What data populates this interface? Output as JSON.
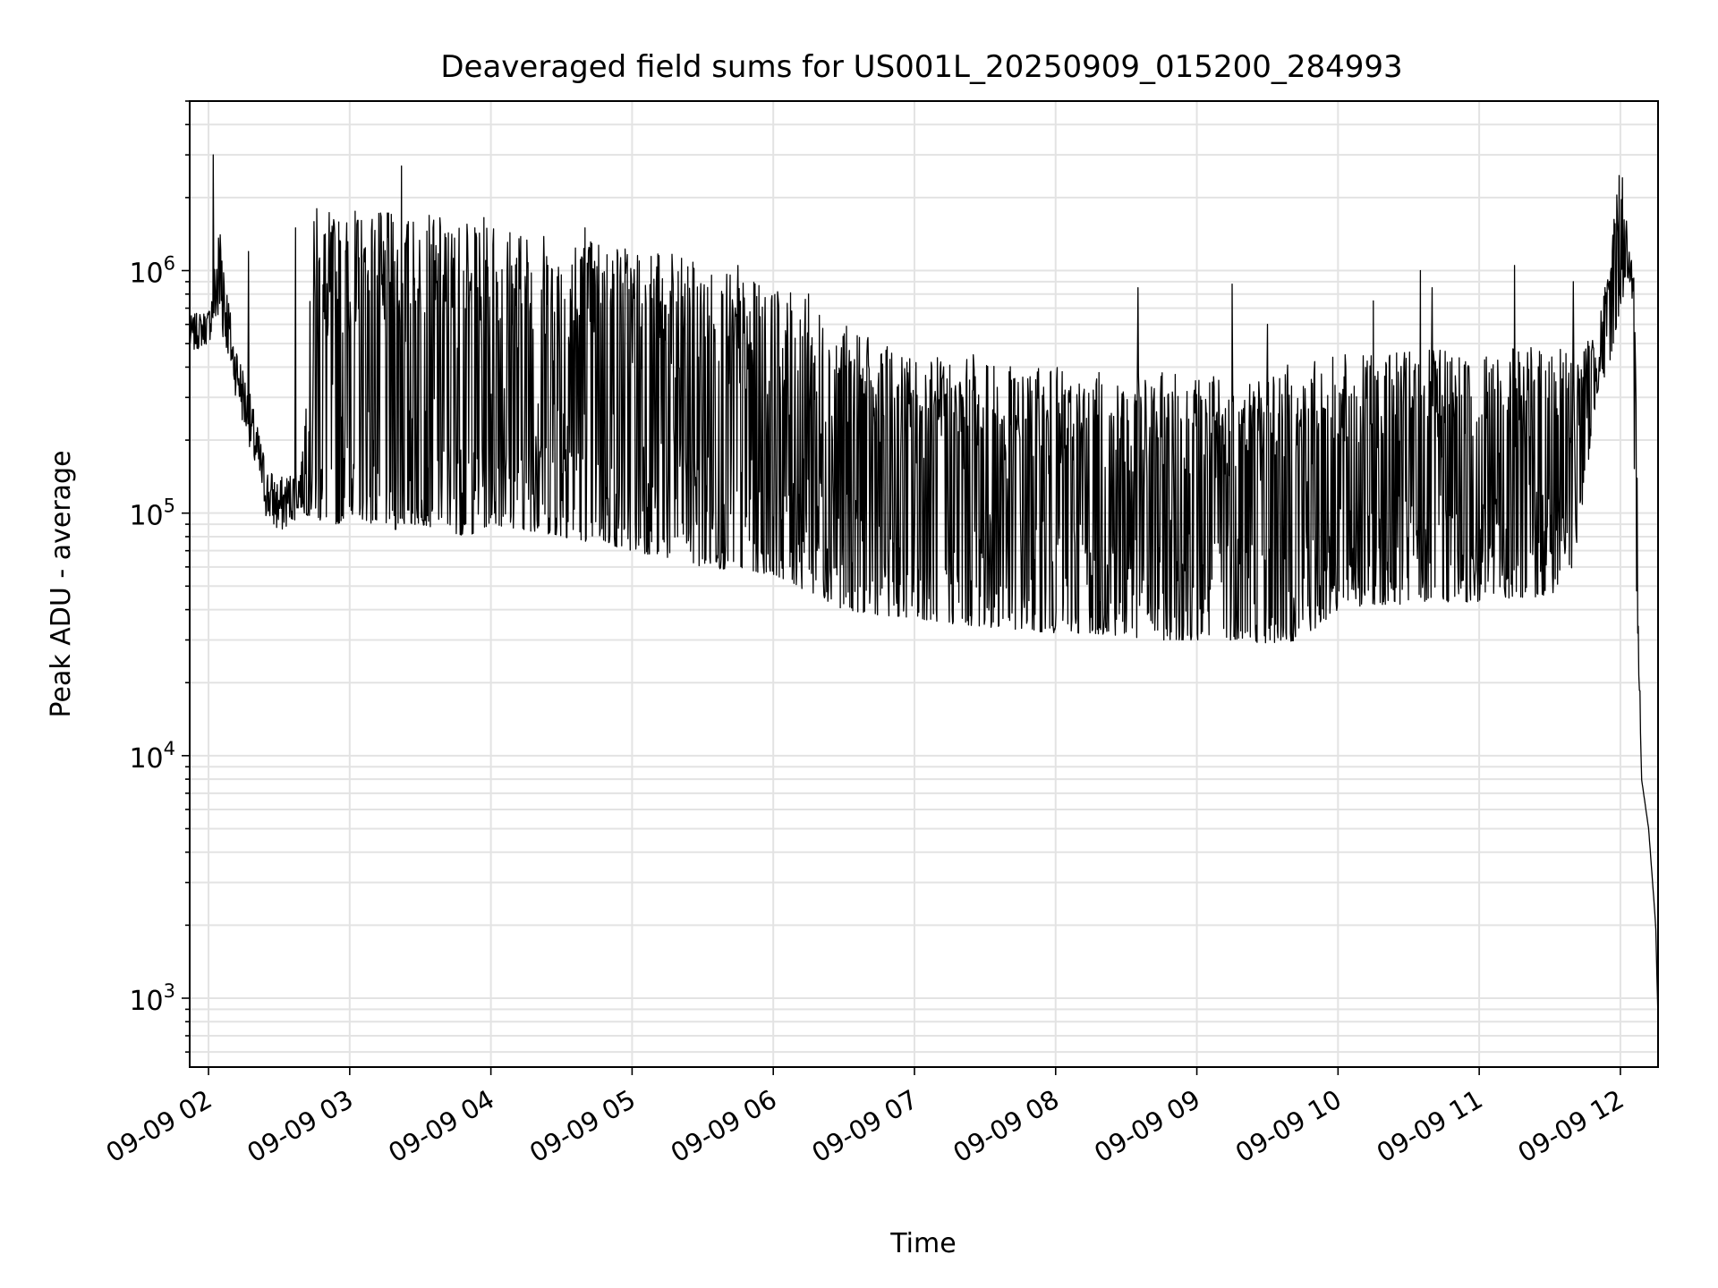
{
  "chart_data": {
    "type": "line",
    "title": "Deaveraged field sums for US001L_20250909_015200_284993",
    "xlabel": "Time",
    "ylabel": "Peak ADU - average",
    "yscale": "log",
    "xlim": [
      "09-09 01:52",
      "09-09 12:16"
    ],
    "ylim": [
      520,
      5000000
    ],
    "x_ticks": [
      "09-09 02",
      "09-09 03",
      "09-09 04",
      "09-09 05",
      "09-09 06",
      "09-09 07",
      "09-09 08",
      "09-09 09",
      "09-09 10",
      "09-09 11",
      "09-09 12"
    ],
    "y_ticks": [
      {
        "base": "10",
        "exp": "3",
        "value": 1000
      },
      {
        "base": "10",
        "exp": "4",
        "value": 10000
      },
      {
        "base": "10",
        "exp": "5",
        "value": 100000
      },
      {
        "base": "10",
        "exp": "6",
        "value": 1000000
      }
    ],
    "grid": true,
    "line_color": "#000000",
    "series": [
      {
        "x": [
          "01:52",
          "02:00",
          "02:05",
          "02:10",
          "02:15",
          "02:20",
          "02:25",
          "02:30",
          "02:35",
          "02:40",
          "02:45",
          "02:50",
          "02:55",
          "03:00",
          "03:10",
          "03:20",
          "03:30",
          "03:40",
          "03:50",
          "04:00",
          "04:15",
          "04:30",
          "04:45",
          "05:00",
          "05:15",
          "05:30",
          "05:45",
          "06:00",
          "06:10",
          "06:20",
          "06:30",
          "06:45",
          "07:00",
          "07:15",
          "07:30",
          "07:45",
          "08:00",
          "08:15",
          "08:30",
          "08:45",
          "09:00",
          "09:15",
          "09:30",
          "09:45",
          "10:00",
          "10:15",
          "10:30",
          "10:45",
          "11:00",
          "11:15",
          "11:30",
          "11:40",
          "11:45",
          "11:50",
          "11:55",
          "12:00",
          "12:03",
          "12:06",
          "12:09",
          "12:12",
          "12:15",
          "12:16"
        ],
        "y_low": [
          450000,
          500000,
          600000,
          350000,
          220000,
          140000,
          90000,
          80000,
          90000,
          100000,
          95000,
          90000,
          90000,
          100000,
          90000,
          85000,
          90000,
          85000,
          80000,
          90000,
          85000,
          80000,
          75000,
          70000,
          65000,
          60000,
          58000,
          56000,
          50000,
          45000,
          40000,
          38000,
          37000,
          35000,
          34000,
          33000,
          32000,
          32000,
          31000,
          30000,
          30000,
          30000,
          29000,
          30000,
          40000,
          42000,
          42000,
          43000,
          43000,
          45000,
          45000,
          60000,
          130000,
          300000,
          400000,
          700000,
          900000,
          100000,
          8000,
          5000,
          2000,
          800
        ],
        "y_high": [
          650000,
          700000,
          1700000,
          600000,
          400000,
          250000,
          160000,
          140000,
          150000,
          180000,
          1800000,
          1800000,
          1700000,
          1800000,
          1800000,
          1700000,
          1700000,
          1700000,
          1600000,
          1700000,
          1500000,
          1450000,
          1400000,
          1350000,
          1200000,
          1050000,
          950000,
          850000,
          800000,
          700000,
          600000,
          500000,
          450000,
          450000,
          420000,
          400000,
          400000,
          380000,
          380000,
          380000,
          380000,
          380000,
          400000,
          420000,
          450000,
          450000,
          470000,
          470000,
          470000,
          480000,
          500000,
          450000,
          500000,
          600000,
          1000000,
          3300000,
          1500000,
          900000,
          8000,
          5000,
          2000,
          800
        ],
        "spikes": [
          {
            "t": "02:02",
            "v": 3000000
          },
          {
            "t": "02:17",
            "v": 1200000
          },
          {
            "t": "02:37",
            "v": 1500000
          },
          {
            "t": "02:46",
            "v": 1800000
          },
          {
            "t": "03:22",
            "v": 2700000
          },
          {
            "t": "04:40",
            "v": 1500000
          },
          {
            "t": "05:45",
            "v": 1050000
          },
          {
            "t": "06:15",
            "v": 800000
          },
          {
            "t": "07:25",
            "v": 450000
          },
          {
            "t": "08:35",
            "v": 850000
          },
          {
            "t": "09:15",
            "v": 880000
          },
          {
            "t": "09:30",
            "v": 600000
          },
          {
            "t": "10:15",
            "v": 750000
          },
          {
            "t": "10:35",
            "v": 1000000
          },
          {
            "t": "10:40",
            "v": 850000
          },
          {
            "t": "11:15",
            "v": 1050000
          },
          {
            "t": "11:40",
            "v": 900000
          }
        ]
      }
    ]
  }
}
